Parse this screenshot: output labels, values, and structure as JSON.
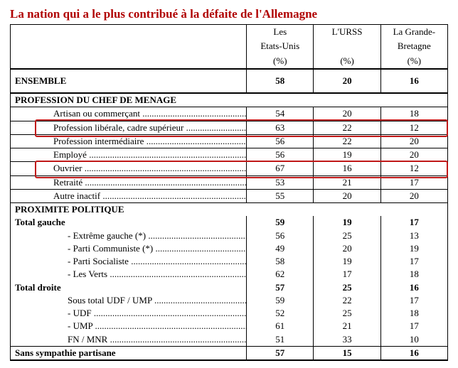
{
  "title": "La nation qui a le plus contribué à la défaite de l'Allemagne",
  "columns": [
    {
      "line1": "Les",
      "line2": "Etats-Unis",
      "line3": "(%)"
    },
    {
      "line1": "L'URSS",
      "line2": "",
      "line3": "(%)"
    },
    {
      "line1": "La Grande-",
      "line2": "Bretagne",
      "line3": "(%)"
    }
  ],
  "ensemble": {
    "label": "ENSEMBLE",
    "v": [
      "58",
      "20",
      "16"
    ]
  },
  "section_profession": {
    "header": "PROFESSION DU CHEF DE MENAGE",
    "rows": [
      {
        "label": "Artisan ou commerçant",
        "v": [
          "54",
          "20",
          "18"
        ],
        "hl": false
      },
      {
        "label": "Profession libérale, cadre supérieur",
        "v": [
          "63",
          "22",
          "12"
        ],
        "hl": true
      },
      {
        "label": "Profession intermédiaire",
        "v": [
          "56",
          "22",
          "20"
        ],
        "hl": false
      },
      {
        "label": "Employé",
        "v": [
          "56",
          "19",
          "20"
        ],
        "hl": false
      },
      {
        "label": "Ouvrier",
        "v": [
          "67",
          "16",
          "12"
        ],
        "hl": true
      },
      {
        "label": "Retraité",
        "v": [
          "53",
          "21",
          "17"
        ],
        "hl": false
      },
      {
        "label": "Autre inactif",
        "v": [
          "55",
          "20",
          "20"
        ],
        "hl": false
      }
    ]
  },
  "section_politique": {
    "header": "PROXIMITE POLITIQUE",
    "gauche": {
      "label": "Total gauche",
      "v": [
        "59",
        "19",
        "17"
      ],
      "rows": [
        {
          "label": "- Extrême gauche (*)",
          "v": [
            "56",
            "25",
            "13"
          ]
        },
        {
          "label": "- Parti Communiste (*)",
          "v": [
            "49",
            "20",
            "19"
          ]
        },
        {
          "label": "- Parti Socialiste",
          "v": [
            "58",
            "19",
            "17"
          ]
        },
        {
          "label": "- Les Verts",
          "v": [
            "62",
            "17",
            "18"
          ]
        }
      ]
    },
    "droite": {
      "label": "Total droite",
      "v": [
        "57",
        "25",
        "16"
      ],
      "rows": [
        {
          "label": "Sous total UDF / UMP",
          "v": [
            "59",
            "22",
            "17"
          ]
        },
        {
          "label": "- UDF",
          "v": [
            "52",
            "25",
            "18"
          ]
        },
        {
          "label": "- UMP",
          "v": [
            "61",
            "21",
            "17"
          ]
        },
        {
          "label": "FN / MNR",
          "v": [
            "51",
            "33",
            "10"
          ]
        }
      ]
    },
    "sans": {
      "label": "Sans sympathie partisane",
      "v": [
        "57",
        "15",
        "16"
      ]
    }
  },
  "style": {
    "highlight_color": "#c01818",
    "title_color": "#b00000",
    "font_family": "Times New Roman",
    "border_color": "#000000",
    "background": "#ffffff"
  }
}
